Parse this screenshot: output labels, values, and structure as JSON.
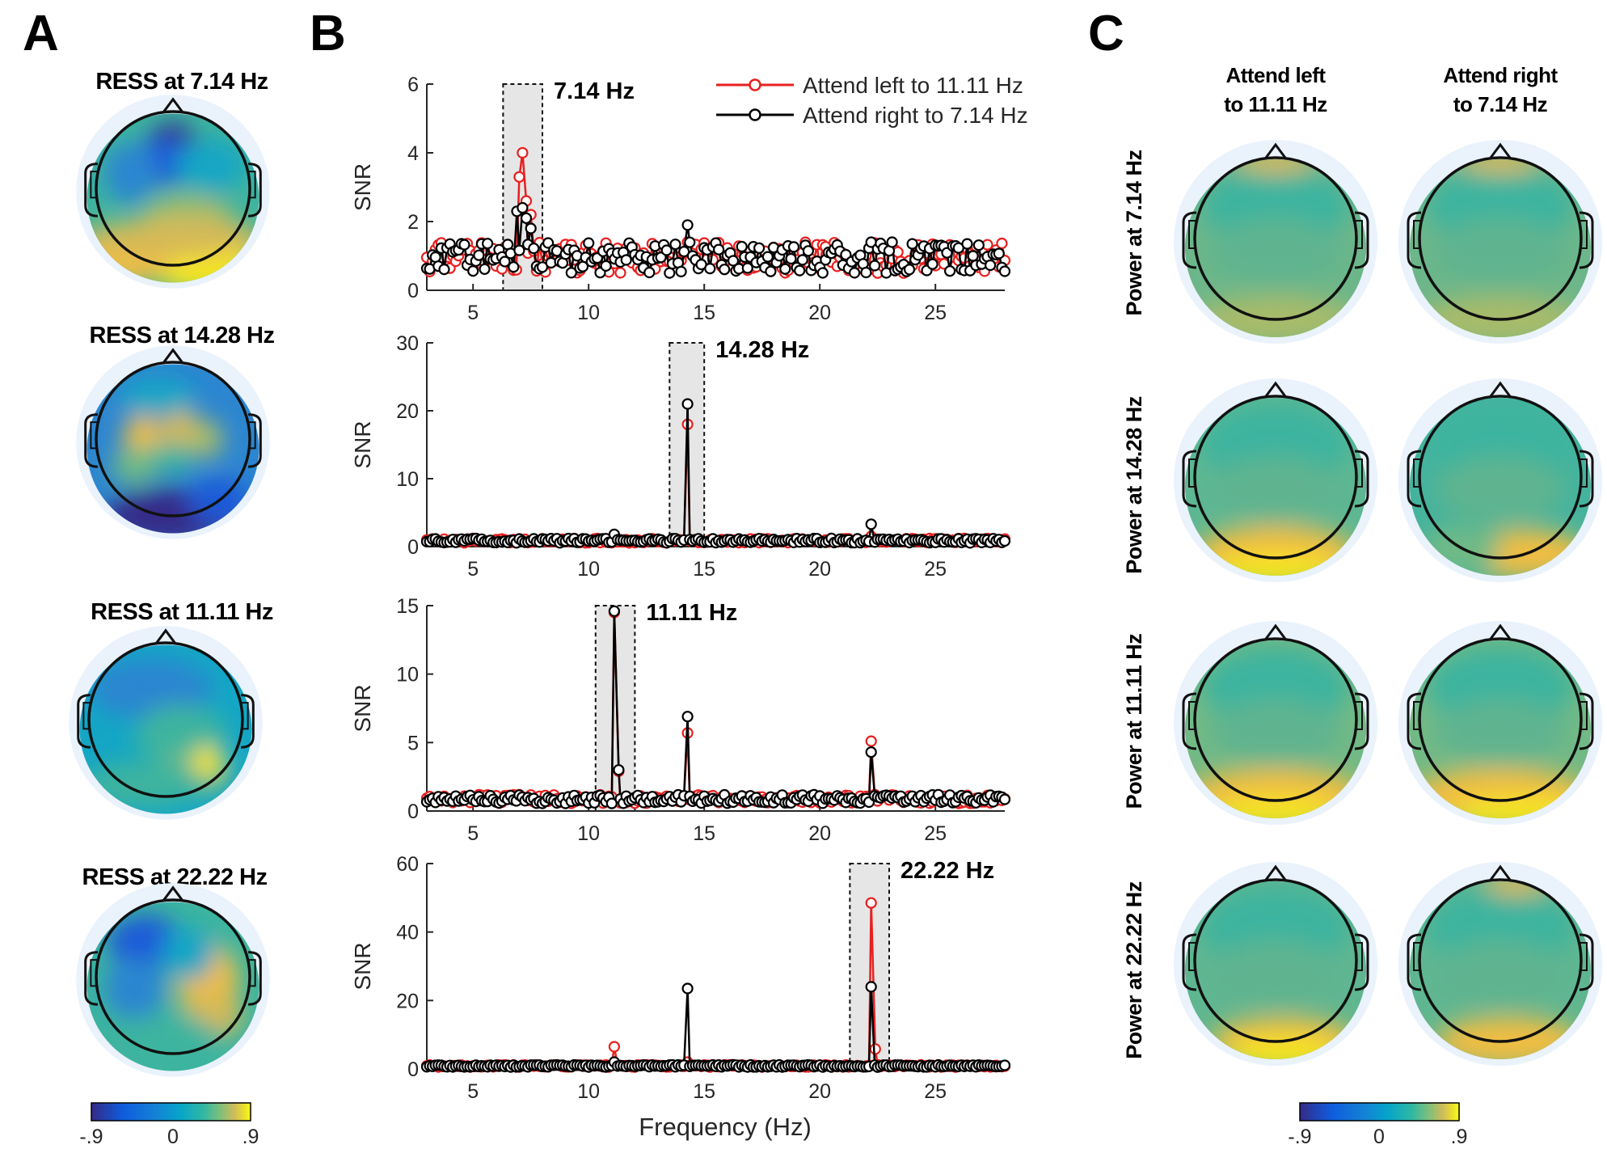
{
  "panels": {
    "a": {
      "letter": "A",
      "titles": [
        "RESS at 7.14 Hz",
        "RESS at 14.28 Hz",
        "RESS at 11.11 Hz",
        "RESS at 22.22 Hz"
      ],
      "colorbar_ticks": [
        "-.9",
        "0",
        ".9"
      ]
    },
    "b": {
      "letter": "B",
      "peak_labels": [
        "7.14 Hz",
        "14.28 Hz",
        "11.11 Hz",
        "22.22 Hz"
      ]
    },
    "c": {
      "letter": "C",
      "col_titles": [
        [
          "Attend left",
          "to 11.11 Hz"
        ],
        [
          "Attend right",
          "to 7.14 Hz"
        ]
      ],
      "row_titles": [
        "Power at 7.14 Hz",
        "Power at 14.28 Hz",
        "Power at 11.11 Hz",
        "Power at 22.22 Hz"
      ],
      "colorbar_ticks": [
        "-.9",
        "0",
        ".9"
      ]
    }
  },
  "colors": {
    "attend_left": "#e8201f",
    "attend_right": "#000000",
    "highlight_box": "#e6e6e6"
  },
  "chart_data": {
    "type": "line",
    "xlabel": "Frequency (Hz)",
    "ylabel": "SNR",
    "xlim": [
      3,
      28
    ],
    "xticks": [
      5,
      10,
      15,
      20,
      25
    ],
    "legend": {
      "placement": "top-right",
      "entries": [
        "Attend left to 11.11 Hz",
        "Attend right to 7.14 Hz"
      ]
    },
    "subplots": [
      {
        "ylim": [
          0,
          6
        ],
        "yticks": [
          0,
          2,
          4,
          6
        ],
        "highlight": [
          6.3,
          8.0
        ],
        "label": "7.14 Hz",
        "series": [
          {
            "name": "Attend left to 11.11 Hz",
            "peaks": [
              [
                7.0,
                3.3
              ],
              [
                7.14,
                4.0
              ],
              [
                7.3,
                2.6
              ],
              [
                7.5,
                2.2
              ],
              [
                14.28,
                1.4
              ],
              [
                22.22,
                1.2
              ]
            ]
          },
          {
            "name": "Attend right to 7.14 Hz",
            "peaks": [
              [
                6.9,
                2.3
              ],
              [
                7.14,
                2.4
              ],
              [
                7.3,
                2.1
              ],
              [
                7.5,
                1.8
              ],
              [
                14.28,
                1.9
              ],
              [
                22.22,
                1.4
              ]
            ]
          }
        ]
      },
      {
        "ylim": [
          0,
          30
        ],
        "yticks": [
          0,
          10,
          20,
          30
        ],
        "highlight": [
          13.5,
          15.0
        ],
        "label": "14.28 Hz",
        "series": [
          {
            "name": "Attend left to 11.11 Hz",
            "peaks": [
              [
                14.28,
                18.0
              ],
              [
                11.11,
                1.5
              ],
              [
                22.22,
                1.5
              ]
            ]
          },
          {
            "name": "Attend right to 7.14 Hz",
            "peaks": [
              [
                14.28,
                21.0
              ],
              [
                11.11,
                1.8
              ],
              [
                22.22,
                3.3
              ]
            ]
          }
        ]
      },
      {
        "ylim": [
          0,
          15
        ],
        "yticks": [
          0,
          5,
          10,
          15
        ],
        "highlight": [
          10.3,
          12.0
        ],
        "label": "11.11 Hz",
        "series": [
          {
            "name": "Attend left to 11.11 Hz",
            "peaks": [
              [
                11.11,
                14.5
              ],
              [
                11.3,
                2.9
              ],
              [
                14.28,
                5.7
              ],
              [
                22.22,
                5.1
              ]
            ]
          },
          {
            "name": "Attend right to 7.14 Hz",
            "peaks": [
              [
                11.11,
                14.6
              ],
              [
                11.3,
                3.0
              ],
              [
                14.28,
                6.9
              ],
              [
                22.22,
                4.3
              ]
            ]
          }
        ]
      },
      {
        "ylim": [
          0,
          60
        ],
        "yticks": [
          0,
          20,
          40,
          60
        ],
        "highlight": [
          21.3,
          23.0
        ],
        "label": "22.22 Hz",
        "series": [
          {
            "name": "Attend left to 11.11 Hz",
            "peaks": [
              [
                22.22,
                48.5
              ],
              [
                22.4,
                5.8
              ],
              [
                11.11,
                6.5
              ],
              [
                14.28,
                2.0
              ]
            ]
          },
          {
            "name": "Attend right to 7.14 Hz",
            "peaks": [
              [
                22.22,
                24.0
              ],
              [
                14.28,
                23.5
              ],
              [
                11.11,
                2.0
              ]
            ]
          }
        ]
      }
    ]
  }
}
